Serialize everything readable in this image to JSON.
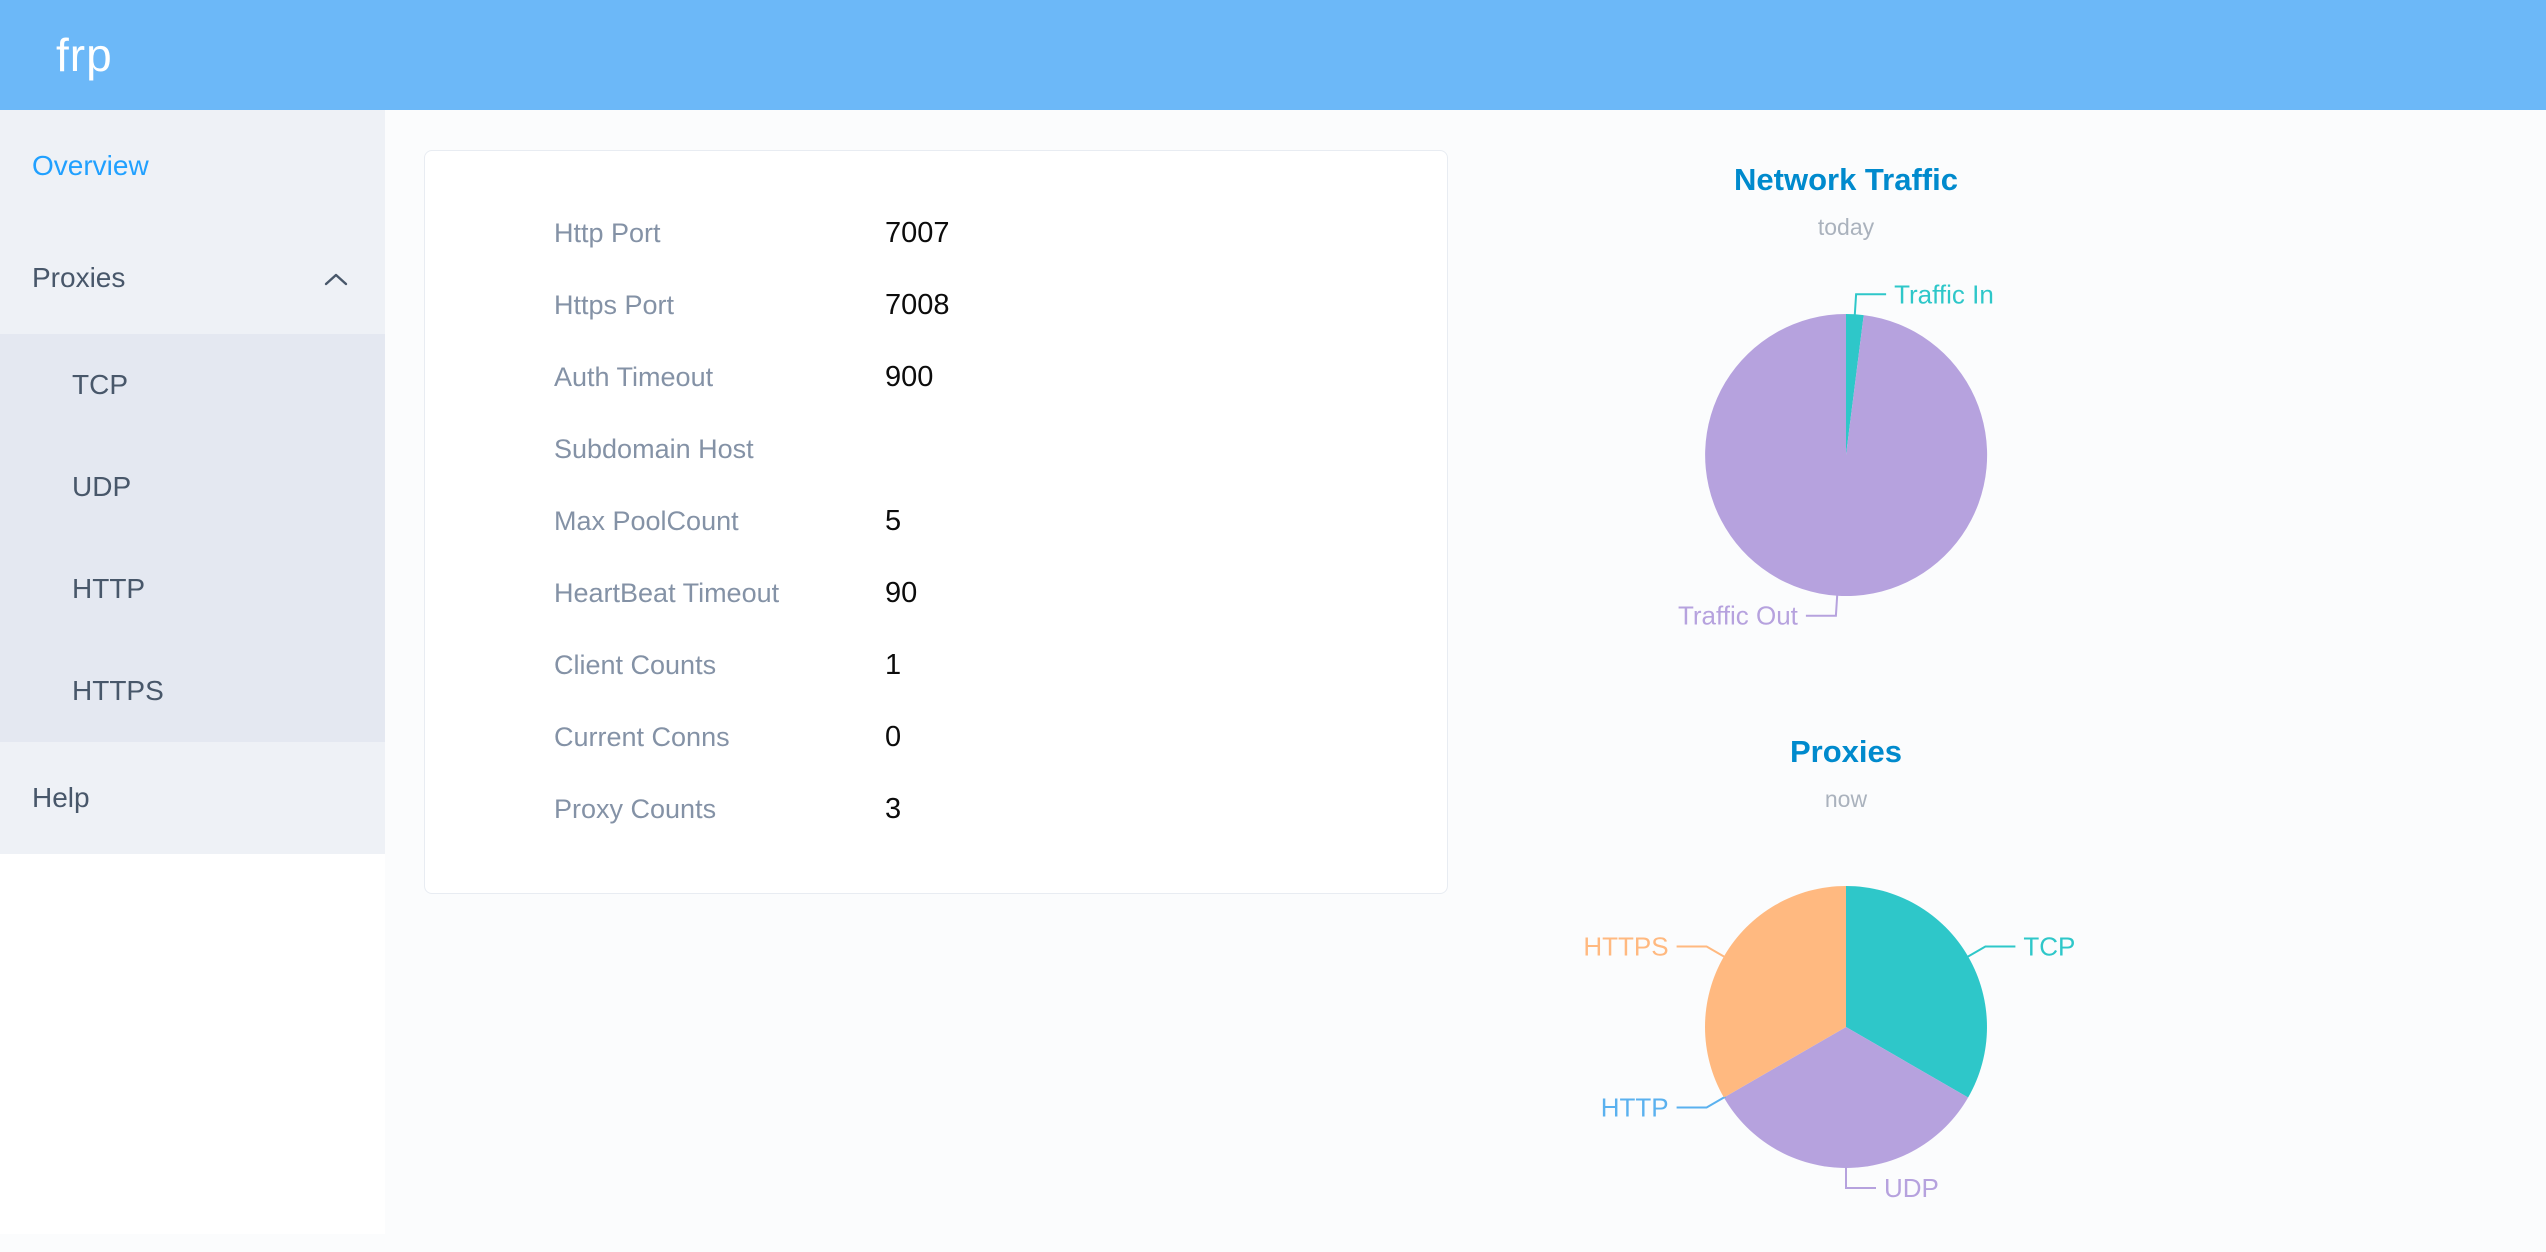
{
  "header": {
    "logo_text": "frp",
    "background_color": "#6cb8f8"
  },
  "sidebar": {
    "overview_label": "Overview",
    "proxies_label": "Proxies",
    "proxies_expanded": true,
    "proxies_icon": "chevron-up-icon",
    "submenu": [
      "TCP",
      "UDP",
      "HTTP",
      "HTTPS"
    ],
    "help_label": "Help",
    "active_item": "Overview",
    "active_color": "#20a0ff"
  },
  "server_info": {
    "rows": [
      {
        "label": "Http Port",
        "value": "7007"
      },
      {
        "label": "Https Port",
        "value": "7008"
      },
      {
        "label": "Auth Timeout",
        "value": "900"
      },
      {
        "label": "Subdomain Host",
        "value": ""
      },
      {
        "label": "Max PoolCount",
        "value": "5"
      },
      {
        "label": "HeartBeat Timeout",
        "value": "90"
      },
      {
        "label": "Client Counts",
        "value": "1"
      },
      {
        "label": "Current Conns",
        "value": "0"
      },
      {
        "label": "Proxy Counts",
        "value": "3"
      }
    ]
  },
  "chart_data": [
    {
      "type": "pie",
      "title": "Network Traffic",
      "subtitle": "today",
      "legend_position": "none",
      "slices": [
        {
          "label": "Traffic In",
          "value": 2,
          "color": "#2ec7c9"
        },
        {
          "label": "Traffic Out",
          "value": 98,
          "color": "#b6a2de"
        }
      ]
    },
    {
      "type": "pie",
      "title": "Proxies",
      "subtitle": "now",
      "legend_position": "none",
      "slices": [
        {
          "label": "TCP",
          "value": 1,
          "color": "#2ec7c9"
        },
        {
          "label": "UDP",
          "value": 1,
          "color": "#b6a2de"
        },
        {
          "label": "HTTP",
          "value": 0,
          "color": "#5ab1ef"
        },
        {
          "label": "HTTPS",
          "value": 1,
          "color": "#ffb980"
        }
      ]
    }
  ],
  "theme": {
    "chart_title_color": "#008acd",
    "chart_subtitle_color": "#aab2bd",
    "sidebar_bg": "#eef1f6",
    "submenu_bg": "#e4e8f1"
  }
}
